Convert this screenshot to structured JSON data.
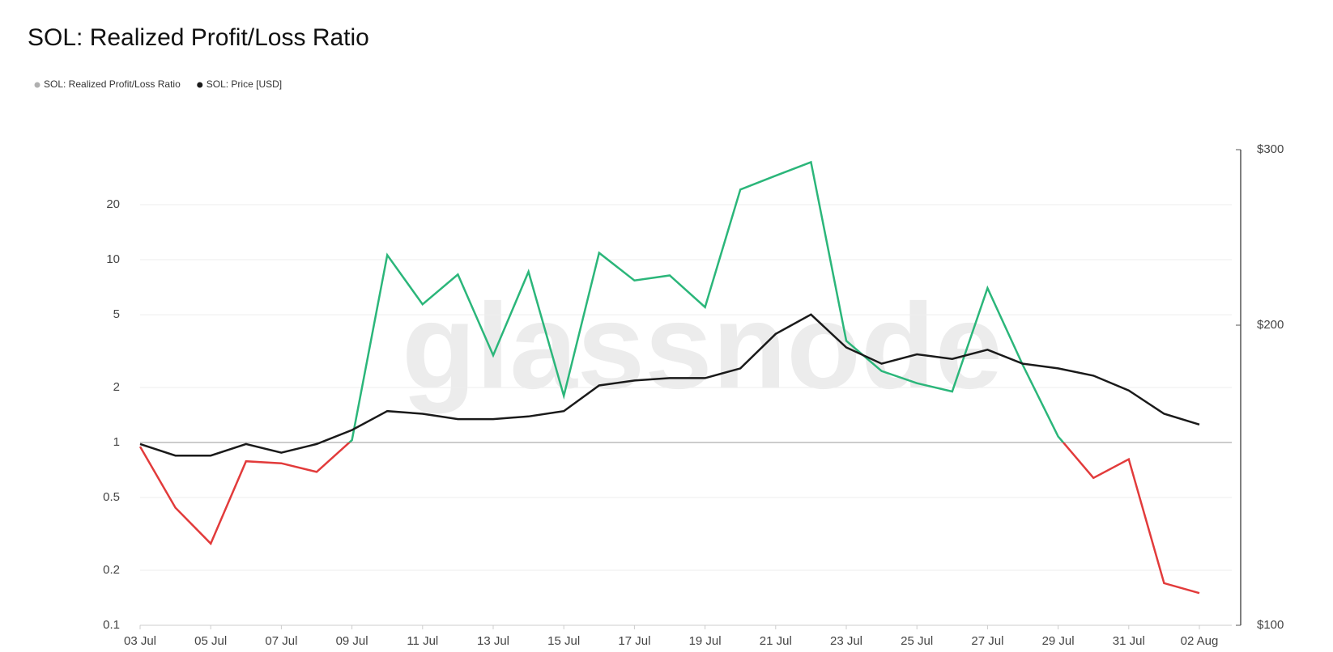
{
  "chart_data": {
    "type": "line",
    "title": "SOL: Realized Profit/Loss Ratio",
    "watermark": "glassnode",
    "categories": [
      "03 Jul",
      null,
      "05 Jul",
      null,
      "07 Jul",
      null,
      "09 Jul",
      null,
      "11 Jul",
      null,
      "13 Jul",
      null,
      "15 Jul",
      null,
      "17 Jul",
      null,
      "19 Jul",
      null,
      "21 Jul",
      null,
      "23 Jul",
      null,
      "25 Jul",
      null,
      "27 Jul",
      null,
      "29 Jul",
      null,
      "31 Jul",
      null,
      "02 Aug"
    ],
    "series": [
      {
        "name": "SOL: Realized Profit/Loss Ratio",
        "color": "#b0b0b0",
        "color_above": "#2bb67a",
        "color_below": "#e23b3b",
        "values": [
          0.95,
          0.44,
          0.28,
          0.79,
          0.77,
          0.69,
          1.03,
          10.6,
          5.7,
          8.3,
          3.0,
          8.6,
          1.8,
          10.9,
          7.7,
          8.2,
          5.5,
          24.2,
          28.8,
          34.2,
          3.6,
          2.46,
          2.11,
          1.9,
          7.0,
          2.65,
          1.08,
          0.64,
          0.81,
          0.17,
          0.15
        ]
      },
      {
        "name": "SOL: Price [USD]",
        "color": "#1a1a1a",
        "axis": "y2",
        "values": [
          152,
          148,
          148,
          152,
          149,
          152,
          157,
          164,
          163,
          161,
          161,
          162,
          164,
          174,
          176,
          177,
          177,
          181,
          196,
          205,
          190,
          183,
          187,
          185,
          189,
          183,
          181,
          178,
          172,
          163,
          159
        ]
      }
    ],
    "threshold": 1,
    "ylim": [
      0.1,
      40
    ],
    "yticks": [
      0.1,
      0.2,
      0.5,
      1,
      2,
      5,
      10,
      20
    ],
    "ylog": true,
    "y2lim": [
      100,
      300
    ],
    "y2ticks": [
      {
        "value": 100,
        "label": "$100"
      },
      {
        "value": 200,
        "label": "$200"
      },
      {
        "value": 300,
        "label": "$300"
      }
    ],
    "y2log": true,
    "grid": true,
    "legend": "top-left"
  }
}
